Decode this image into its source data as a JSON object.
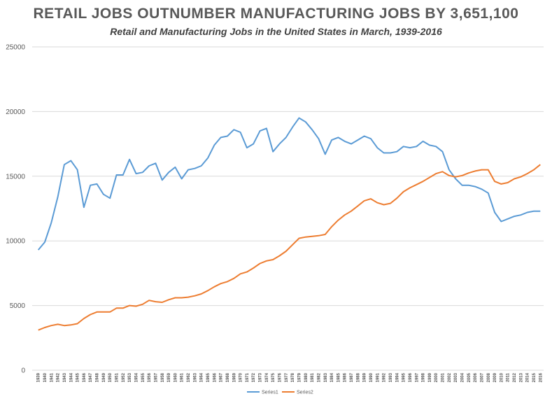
{
  "chart_data": {
    "type": "line",
    "title": "RETAIL JOBS OUTNUMBER MANUFACTURING JOBS BY 3,651,100",
    "subtitle": "Retail and Manufacturing Jobs in the United States in March, 1939-2016",
    "xlabel": "",
    "ylabel": "",
    "ylim": [
      0,
      25000
    ],
    "yticks": [
      0,
      5000,
      10000,
      15000,
      20000,
      25000
    ],
    "grid": true,
    "legend_position": "bottom",
    "x": [
      1939,
      1940,
      1941,
      1942,
      1943,
      1944,
      1945,
      1946,
      1947,
      1948,
      1949,
      1950,
      1951,
      1952,
      1953,
      1954,
      1955,
      1956,
      1957,
      1958,
      1959,
      1960,
      1961,
      1962,
      1963,
      1964,
      1965,
      1966,
      1967,
      1968,
      1969,
      1970,
      1971,
      1972,
      1973,
      1974,
      1975,
      1976,
      1977,
      1978,
      1979,
      1980,
      1981,
      1982,
      1983,
      1984,
      1985,
      1986,
      1987,
      1988,
      1989,
      1990,
      1991,
      1992,
      1993,
      1994,
      1995,
      1996,
      1997,
      1998,
      1999,
      2000,
      2001,
      2002,
      2003,
      2004,
      2005,
      2006,
      2007,
      2008,
      2009,
      2010,
      2011,
      2012,
      2013,
      2014,
      2015,
      2016
    ],
    "series": [
      {
        "name": "Series1",
        "color": "#5b9bd5",
        "values": [
          9300,
          9900,
          11400,
          13400,
          15900,
          16200,
          15500,
          12600,
          14300,
          14400,
          13600,
          13300,
          15100,
          15100,
          16300,
          15200,
          15300,
          15800,
          16000,
          14700,
          15300,
          15700,
          14800,
          15500,
          15600,
          15800,
          16400,
          17400,
          18000,
          18100,
          18600,
          18400,
          17200,
          17500,
          18500,
          18700,
          16900,
          17500,
          18000,
          18800,
          19500,
          19200,
          18600,
          17900,
          16700,
          17800,
          18000,
          17700,
          17500,
          17800,
          18100,
          17900,
          17200,
          16800,
          16800,
          16900,
          17300,
          17200,
          17300,
          17700,
          17400,
          17300,
          16900,
          15500,
          14800,
          14300,
          14300,
          14200,
          14000,
          13700,
          12200,
          11500,
          11700,
          11900,
          12000,
          12200,
          12300,
          12300
        ]
      },
      {
        "name": "Series2",
        "color": "#ed7d31",
        "values": [
          3100,
          3300,
          3450,
          3550,
          3450,
          3500,
          3600,
          4000,
          4300,
          4500,
          4500,
          4500,
          4800,
          4800,
          5000,
          4950,
          5100,
          5400,
          5300,
          5250,
          5450,
          5600,
          5600,
          5650,
          5750,
          5900,
          6150,
          6450,
          6700,
          6850,
          7100,
          7450,
          7600,
          7900,
          8250,
          8450,
          8550,
          8850,
          9200,
          9700,
          10200,
          10300,
          10350,
          10400,
          10500,
          11100,
          11600,
          12000,
          12300,
          12700,
          13100,
          13250,
          12950,
          12800,
          12900,
          13300,
          13800,
          14100,
          14350,
          14600,
          14900,
          15200,
          15350,
          15050,
          14950,
          15050,
          15250,
          15400,
          15500,
          15500,
          14600,
          14400,
          14500,
          14800,
          14950,
          15200,
          15500,
          15900
        ]
      }
    ]
  }
}
